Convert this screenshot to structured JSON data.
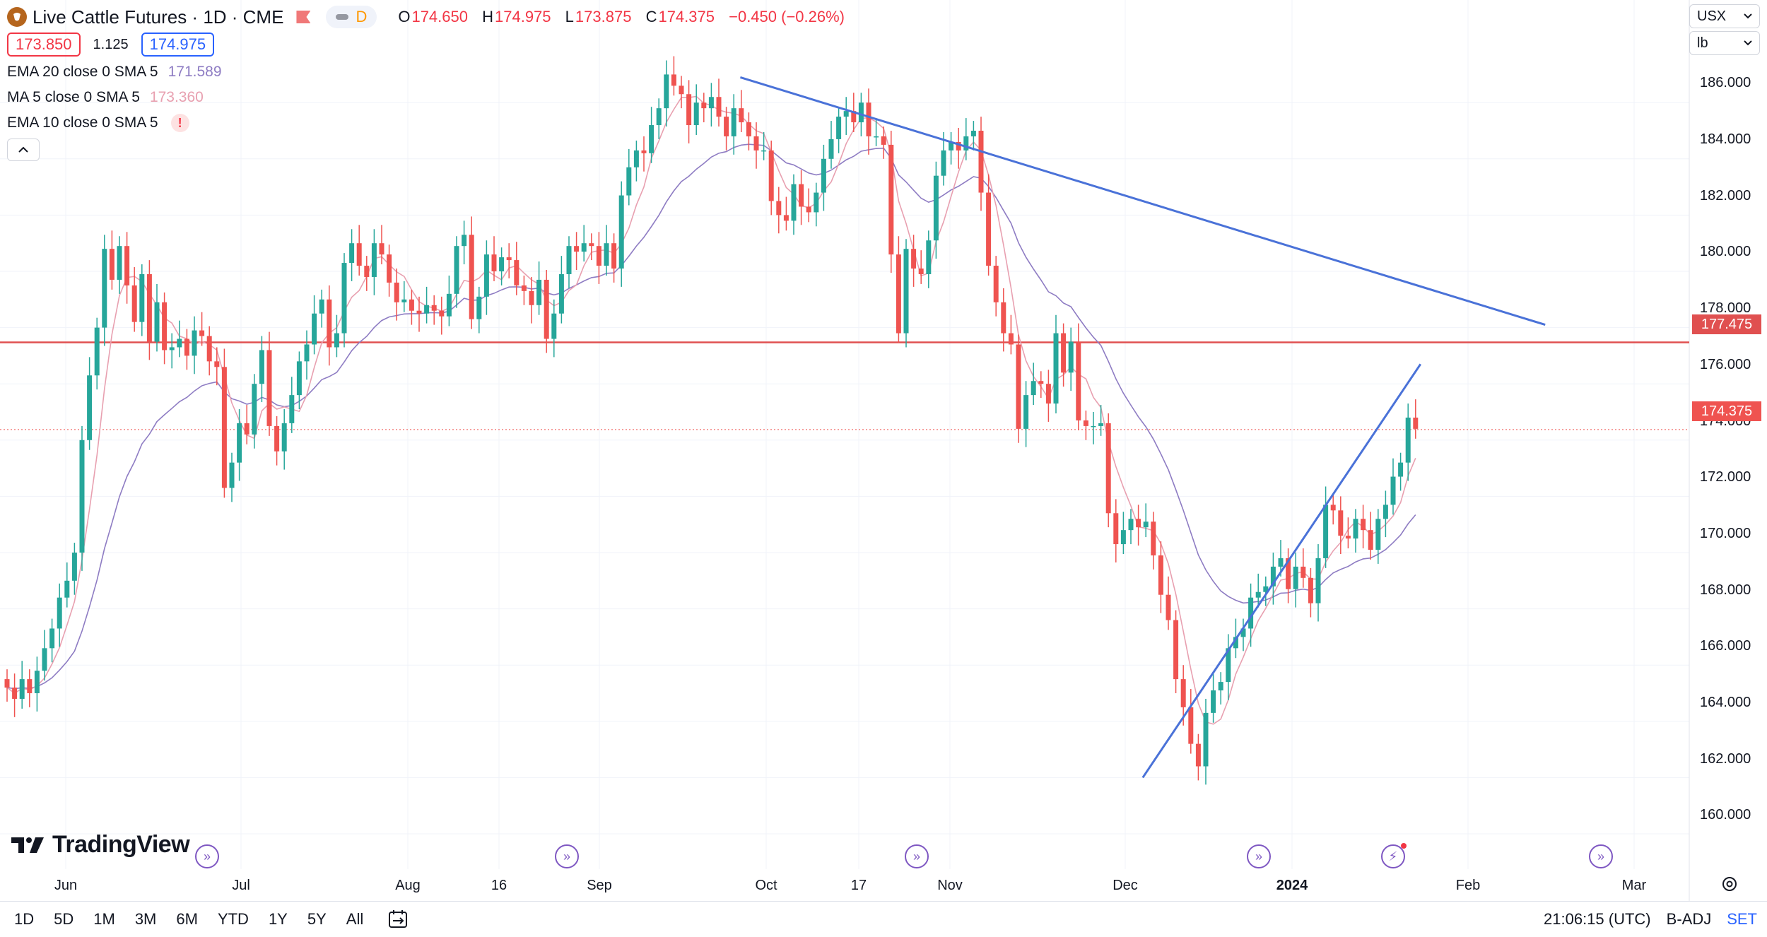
{
  "header": {
    "symbol_title": "Live Cattle Futures · 1D · CME",
    "pill_label": "D",
    "ohlc": {
      "o_label": "O",
      "o": "174.650",
      "h_label": "H",
      "h": "174.975",
      "l_label": "L",
      "l": "173.875",
      "c_label": "C",
      "c": "174.375",
      "chg": "−0.450 (−0.26%)"
    },
    "bid": "173.850",
    "spread": "1.125",
    "ask": "174.975",
    "indicators": [
      {
        "label": "EMA 20 close 0 SMA 5",
        "value": "171.589",
        "color": "#8e7cc3"
      },
      {
        "label": "MA 5 close 0 SMA 5",
        "value": "173.360",
        "color": "#e8a0b0"
      },
      {
        "label": "EMA 10 close 0 SMA 5",
        "value": "!",
        "color": "#f23645"
      }
    ],
    "collapse_icon": "chevron-up-icon"
  },
  "right_controls": {
    "currency": "USX",
    "unit": "lb"
  },
  "price_scale": {
    "labels": [
      "186.000",
      "184.000",
      "182.000",
      "180.000",
      "178.000",
      "176.000",
      "174.000",
      "172.000",
      "170.000",
      "168.000",
      "166.000",
      "164.000",
      "162.000",
      "160.000"
    ],
    "hline_tag": "177.475",
    "last_tag": "174.375"
  },
  "time_scale": {
    "labels": [
      {
        "text": "Jun",
        "bold": false
      },
      {
        "text": "Jul",
        "bold": false
      },
      {
        "text": "Aug",
        "bold": false
      },
      {
        "text": "16",
        "bold": false
      },
      {
        "text": "Sep",
        "bold": false
      },
      {
        "text": "Oct",
        "bold": false
      },
      {
        "text": "17",
        "bold": false
      },
      {
        "text": "Nov",
        "bold": false
      },
      {
        "text": "Dec",
        "bold": false
      },
      {
        "text": "2024",
        "bold": true
      },
      {
        "text": "Feb",
        "bold": false
      },
      {
        "text": "Mar",
        "bold": false
      }
    ]
  },
  "logo_text": "TradingView",
  "bottom_bar": {
    "timeframes": [
      "1D",
      "5D",
      "1M",
      "3M",
      "6M",
      "YTD",
      "1Y",
      "5Y",
      "All"
    ],
    "time": "21:06:15 (UTC)",
    "adj": "B-ADJ",
    "set": "SET"
  },
  "colors": {
    "up": "#26a69a",
    "down": "#ef5350",
    "hline": "#e05050",
    "trend": "#4a72d8",
    "ema20": "#8e7cc3",
    "ma5": "#e8a0b0"
  },
  "chart_data": {
    "type": "candlestick",
    "horizontal_line": 177.475,
    "last_price": 174.375,
    "ylim": [
      159,
      188
    ],
    "trendlines": [
      {
        "from": [
          "2023-09-28",
          186.9
        ],
        "to": [
          "2024-02-17",
          178.1
        ]
      },
      {
        "from": [
          "2023-12-08",
          162.0
        ],
        "to": [
          "2024-01-26",
          176.7
        ]
      }
    ],
    "closes": [
      165.2,
      164.8,
      165.5,
      165.0,
      165.8,
      166.6,
      167.3,
      168.4,
      169.0,
      170.0,
      174.0,
      176.3,
      178.0,
      180.8,
      179.7,
      180.9,
      179.5,
      178.2,
      179.9,
      177.5,
      178.9,
      177.2,
      177.3,
      177.6,
      177.0,
      177.9,
      177.7,
      176.8,
      176.6,
      172.3,
      173.2,
      174.6,
      174.2,
      176.0,
      177.2,
      174.5,
      173.6,
      174.6,
      175.6,
      176.8,
      177.4,
      178.5,
      179.0,
      177.3,
      177.8,
      180.3,
      181.0,
      180.2,
      179.8,
      181.0,
      180.6,
      179.6,
      178.9,
      179.0,
      178.6,
      178.5,
      178.8,
      178.6,
      178.4,
      179.2,
      180.9,
      181.3,
      178.3,
      179.1,
      180.6,
      180.0,
      180.5,
      180.4,
      179.5,
      179.3,
      178.8,
      179.7,
      177.6,
      178.5,
      179.9,
      180.9,
      180.7,
      181.0,
      180.9,
      180.2,
      181.0,
      180.1,
      182.7,
      183.7,
      184.3,
      184.2,
      185.2,
      185.8,
      187.0,
      186.6,
      186.3,
      185.2,
      186.0,
      185.8,
      186.2,
      185.5,
      184.8,
      185.8,
      185.3,
      184.8,
      184.3,
      184.3,
      182.5,
      182.0,
      181.8,
      183.1,
      182.3,
      182.1,
      182.8,
      184.0,
      184.7,
      185.5,
      185.7,
      185.3,
      186.0,
      184.8,
      184.8,
      184.5,
      180.6,
      177.8,
      180.8,
      180.1,
      179.9,
      181.1,
      183.4,
      184.3,
      184.6,
      184.3,
      184.8,
      185.0,
      182.8,
      180.2,
      178.9,
      177.8,
      177.4,
      174.4,
      175.6,
      176.1,
      176.0,
      175.3,
      177.8,
      176.4,
      177.5,
      174.7,
      174.5,
      174.5,
      174.6,
      171.4,
      170.3,
      170.8,
      171.2,
      170.9,
      171.1,
      169.9,
      168.5,
      167.6,
      165.5,
      164.5,
      163.2,
      162.4,
      164.3,
      165.1,
      165.4,
      166.6,
      167.0,
      167.3,
      168.4,
      168.6,
      168.8,
      169.5,
      169.8,
      168.7,
      169.5,
      169.1,
      168.2,
      169.8,
      171.7,
      171.5,
      170.6,
      170.5,
      171.2,
      170.8,
      170.1,
      171.2,
      171.7,
      172.7,
      173.2,
      174.8,
      174.4
    ]
  }
}
